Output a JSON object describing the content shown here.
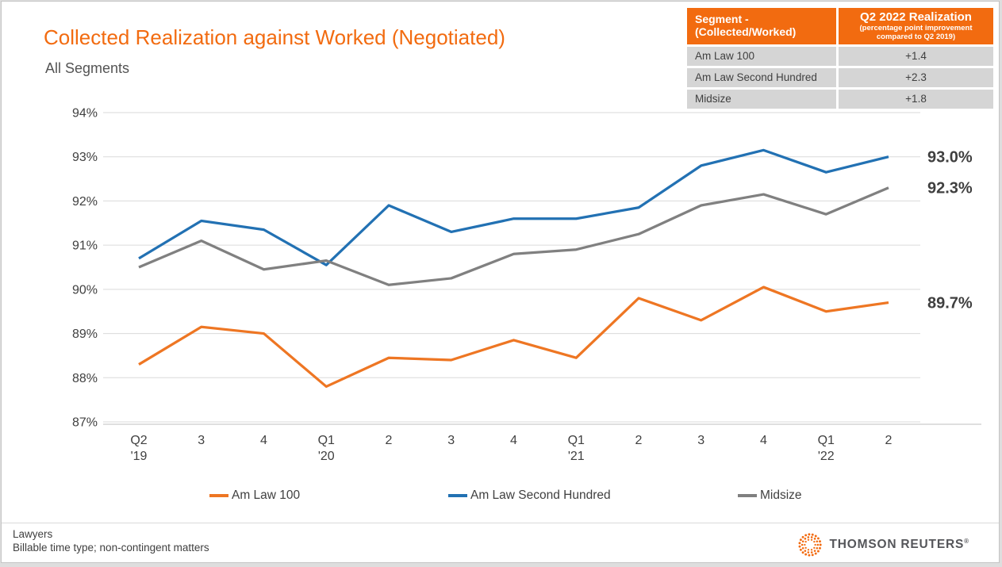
{
  "header": {
    "title": "Collected Realization against Worked (Negotiated)",
    "subtitle": "All Segments"
  },
  "summary_table": {
    "col1_header": "Segment - (Collected/Worked)",
    "col2_header": "Q2 2022 Realization",
    "col2_subheader": "(percentage point improvement compared to Q2 2019)",
    "rows": [
      {
        "segment": "Am Law 100",
        "value": "+1.4"
      },
      {
        "segment": "Am Law Second Hundred",
        "value": "+2.3"
      },
      {
        "segment": "Midsize",
        "value": "+1.8"
      }
    ]
  },
  "chart_data": {
    "type": "line",
    "title": "Collected Realization against Worked (Negotiated) — All Segments",
    "categories": [
      "Q2\n'19",
      "3",
      "4",
      "Q1\n'20",
      "2",
      "3",
      "4",
      "Q1\n'21",
      "2",
      "3",
      "4",
      "Q1\n'22",
      "2"
    ],
    "series": [
      {
        "name": "Am Law 100",
        "color": "#ee7623",
        "values": [
          88.3,
          89.15,
          89.0,
          87.8,
          88.45,
          88.4,
          88.85,
          88.45,
          89.8,
          89.3,
          90.05,
          89.5,
          89.7
        ],
        "end_label": "89.7%"
      },
      {
        "name": "Am Law Second Hundred",
        "color": "#2271b3",
        "values": [
          90.7,
          91.55,
          91.35,
          90.55,
          91.9,
          91.3,
          91.6,
          91.6,
          91.85,
          92.8,
          93.15,
          92.65,
          93.0
        ],
        "end_label": "93.0%"
      },
      {
        "name": "Midsize",
        "color": "#808080",
        "values": [
          90.5,
          91.1,
          90.45,
          90.65,
          90.1,
          90.25,
          90.8,
          90.9,
          91.25,
          91.9,
          92.15,
          91.7,
          92.3
        ],
        "end_label": "92.3%"
      }
    ],
    "ylabel_ticks": [
      "94%",
      "93%",
      "92%",
      "91%",
      "90%",
      "89%",
      "88%",
      "87%"
    ],
    "ylim": [
      87,
      94
    ],
    "xlabel": "",
    "ylabel": "",
    "grid": "horizontal",
    "legend_position": "bottom"
  },
  "footer": {
    "line1": "Lawyers",
    "line2": "Billable time type; non-contingent matters",
    "brand": "THOMSON REUTERS",
    "brand_reg": "®"
  },
  "colors": {
    "accent_orange": "#f26b10",
    "grid": "#dadada",
    "axis": "#bfbfbf",
    "tick_text": "#404040",
    "end_label_text": "#3f3f3f",
    "table_row_bg": "#d5d5d5"
  }
}
